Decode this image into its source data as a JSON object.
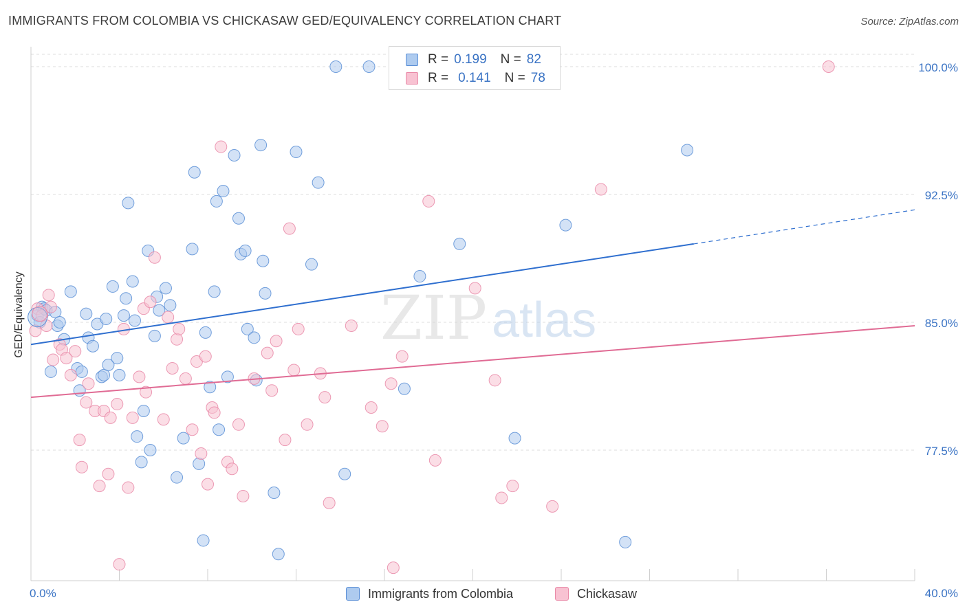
{
  "title": "IMMIGRANTS FROM COLOMBIA VS CHICKASAW GED/EQUIVALENCY CORRELATION CHART",
  "source": "Source: ZipAtlas.com",
  "watermark": {
    "zip": "ZIP",
    "atlas": "atlas"
  },
  "legend": {
    "rows": [
      {
        "r_label": "R =",
        "r_value": "0.199",
        "n_label": "N =",
        "n_value": "82",
        "color": "#aecbef",
        "border": "#5b8fd6"
      },
      {
        "r_label": "R =",
        "r_value": "0.141",
        "n_label": "N =",
        "n_value": "78",
        "color": "#f8c2d2",
        "border": "#e98aa8"
      }
    ]
  },
  "bottom_legend": {
    "series1": "Immigrants from Colombia",
    "series2": "Chickasaw"
  },
  "chart_data": {
    "type": "scatter",
    "xlabel": "",
    "ylabel": "GED/Equivalency",
    "xlim": [
      0,
      40
    ],
    "ylim": [
      70.0,
      101.2
    ],
    "x_tick_labels": [
      "0.0%",
      "40.0%"
    ],
    "y_ticks": [
      77.5,
      85.0,
      92.5,
      100.0
    ],
    "y_tick_labels": [
      "77.5%",
      "85.0%",
      "92.5%",
      "100.0%"
    ],
    "grid": true,
    "legend_position": "top-center",
    "series": [
      {
        "name": "Immigrants from Colombia",
        "color": "#aecbef",
        "stroke": "#5b8fd6",
        "line_color": "#2f6fcf",
        "trend": {
          "x0": 0.0,
          "y0": 83.7,
          "x1": 30.0,
          "y1": 89.6,
          "dash_x1": 40.0,
          "dash_y1": 91.6
        },
        "points": [
          [
            0.3,
            85.4
          ],
          [
            0.4,
            85.0
          ],
          [
            0.5,
            85.9
          ],
          [
            0.6,
            85.8
          ],
          [
            0.7,
            85.7
          ],
          [
            0.9,
            82.1
          ],
          [
            1.1,
            85.6
          ],
          [
            1.2,
            84.8
          ],
          [
            1.3,
            85.0
          ],
          [
            1.5,
            84.0
          ],
          [
            1.8,
            86.8
          ],
          [
            2.1,
            82.3
          ],
          [
            2.2,
            81.0
          ],
          [
            2.3,
            82.1
          ],
          [
            2.5,
            85.5
          ],
          [
            2.6,
            84.1
          ],
          [
            2.8,
            83.6
          ],
          [
            3.0,
            84.9
          ],
          [
            3.2,
            81.8
          ],
          [
            3.3,
            81.9
          ],
          [
            3.4,
            85.2
          ],
          [
            3.5,
            82.5
          ],
          [
            3.7,
            87.1
          ],
          [
            3.9,
            82.9
          ],
          [
            4.0,
            81.9
          ],
          [
            4.2,
            85.4
          ],
          [
            4.3,
            86.4
          ],
          [
            4.4,
            92.0
          ],
          [
            4.6,
            87.4
          ],
          [
            4.7,
            85.1
          ],
          [
            4.8,
            78.3
          ],
          [
            5.0,
            76.8
          ],
          [
            5.1,
            79.8
          ],
          [
            5.3,
            89.2
          ],
          [
            5.4,
            77.5
          ],
          [
            5.6,
            84.2
          ],
          [
            5.7,
            86.5
          ],
          [
            5.8,
            85.7
          ],
          [
            6.1,
            87.0
          ],
          [
            6.3,
            86.0
          ],
          [
            6.6,
            75.9
          ],
          [
            6.9,
            78.2
          ],
          [
            7.3,
            89.3
          ],
          [
            7.4,
            93.8
          ],
          [
            7.6,
            76.7
          ],
          [
            7.8,
            72.2
          ],
          [
            7.9,
            84.4
          ],
          [
            8.1,
            81.2
          ],
          [
            8.3,
            86.8
          ],
          [
            8.4,
            92.1
          ],
          [
            8.5,
            78.7
          ],
          [
            8.7,
            92.7
          ],
          [
            8.9,
            81.8
          ],
          [
            9.2,
            94.8
          ],
          [
            9.4,
            91.1
          ],
          [
            9.5,
            89.0
          ],
          [
            9.7,
            89.2
          ],
          [
            9.8,
            84.6
          ],
          [
            10.1,
            84.1
          ],
          [
            10.2,
            81.6
          ],
          [
            10.4,
            95.4
          ],
          [
            10.5,
            88.6
          ],
          [
            10.6,
            86.7
          ],
          [
            11.0,
            75.0
          ],
          [
            11.2,
            71.4
          ],
          [
            12.0,
            95.0
          ],
          [
            12.7,
            88.4
          ],
          [
            13.0,
            93.2
          ],
          [
            13.8,
            100.0
          ],
          [
            14.2,
            76.1
          ],
          [
            15.3,
            100.0
          ],
          [
            16.5,
            100.0
          ],
          [
            16.9,
            81.1
          ],
          [
            17.6,
            87.7
          ],
          [
            19.4,
            89.6
          ],
          [
            21.9,
            78.2
          ],
          [
            24.2,
            90.7
          ],
          [
            26.9,
            72.1
          ],
          [
            29.7,
            95.1
          ]
        ]
      },
      {
        "name": "Chickasaw",
        "color": "#f8c2d2",
        "stroke": "#e98aa8",
        "line_color": "#e06b94",
        "trend": {
          "x0": 0.0,
          "y0": 80.6,
          "x1": 40.0,
          "y1": 84.8
        },
        "points": [
          [
            0.2,
            84.5
          ],
          [
            0.3,
            85.8
          ],
          [
            0.5,
            85.4
          ],
          [
            0.7,
            84.8
          ],
          [
            0.8,
            86.6
          ],
          [
            0.9,
            85.9
          ],
          [
            1.0,
            82.8
          ],
          [
            1.3,
            83.7
          ],
          [
            1.4,
            83.4
          ],
          [
            1.6,
            82.9
          ],
          [
            1.8,
            81.9
          ],
          [
            2.0,
            83.3
          ],
          [
            2.2,
            78.1
          ],
          [
            2.3,
            76.5
          ],
          [
            2.5,
            80.3
          ],
          [
            2.6,
            81.4
          ],
          [
            2.9,
            79.8
          ],
          [
            3.1,
            75.4
          ],
          [
            3.3,
            79.8
          ],
          [
            3.5,
            76.1
          ],
          [
            3.6,
            79.4
          ],
          [
            3.9,
            80.2
          ],
          [
            4.0,
            70.8
          ],
          [
            4.2,
            84.6
          ],
          [
            4.4,
            75.3
          ],
          [
            4.6,
            79.4
          ],
          [
            4.9,
            81.8
          ],
          [
            5.1,
            85.8
          ],
          [
            5.2,
            80.9
          ],
          [
            5.4,
            86.2
          ],
          [
            5.6,
            88.8
          ],
          [
            6.0,
            79.3
          ],
          [
            6.2,
            85.3
          ],
          [
            6.4,
            82.3
          ],
          [
            6.6,
            84.0
          ],
          [
            6.7,
            84.6
          ],
          [
            7.0,
            81.7
          ],
          [
            7.3,
            78.7
          ],
          [
            7.5,
            82.7
          ],
          [
            7.7,
            77.3
          ],
          [
            7.9,
            83.0
          ],
          [
            8.0,
            75.5
          ],
          [
            8.2,
            80.0
          ],
          [
            8.3,
            79.7
          ],
          [
            8.6,
            95.3
          ],
          [
            8.9,
            76.8
          ],
          [
            9.1,
            76.4
          ],
          [
            9.4,
            79.0
          ],
          [
            9.6,
            74.8
          ],
          [
            10.1,
            81.7
          ],
          [
            10.7,
            83.2
          ],
          [
            10.9,
            81.0
          ],
          [
            11.1,
            83.9
          ],
          [
            11.5,
            78.1
          ],
          [
            11.7,
            90.5
          ],
          [
            11.9,
            82.2
          ],
          [
            12.1,
            84.6
          ],
          [
            12.5,
            79.0
          ],
          [
            13.1,
            82.0
          ],
          [
            13.3,
            80.6
          ],
          [
            13.5,
            74.4
          ],
          [
            14.5,
            84.8
          ],
          [
            15.4,
            80.0
          ],
          [
            15.9,
            78.9
          ],
          [
            16.3,
            81.4
          ],
          [
            16.8,
            83.0
          ],
          [
            16.4,
            70.6
          ],
          [
            18.0,
            92.1
          ],
          [
            18.3,
            76.9
          ],
          [
            20.1,
            87.0
          ],
          [
            21.0,
            81.6
          ],
          [
            21.3,
            74.7
          ],
          [
            21.8,
            75.4
          ],
          [
            23.6,
            74.2
          ],
          [
            25.8,
            92.8
          ],
          [
            36.1,
            100.0
          ]
        ]
      }
    ]
  }
}
